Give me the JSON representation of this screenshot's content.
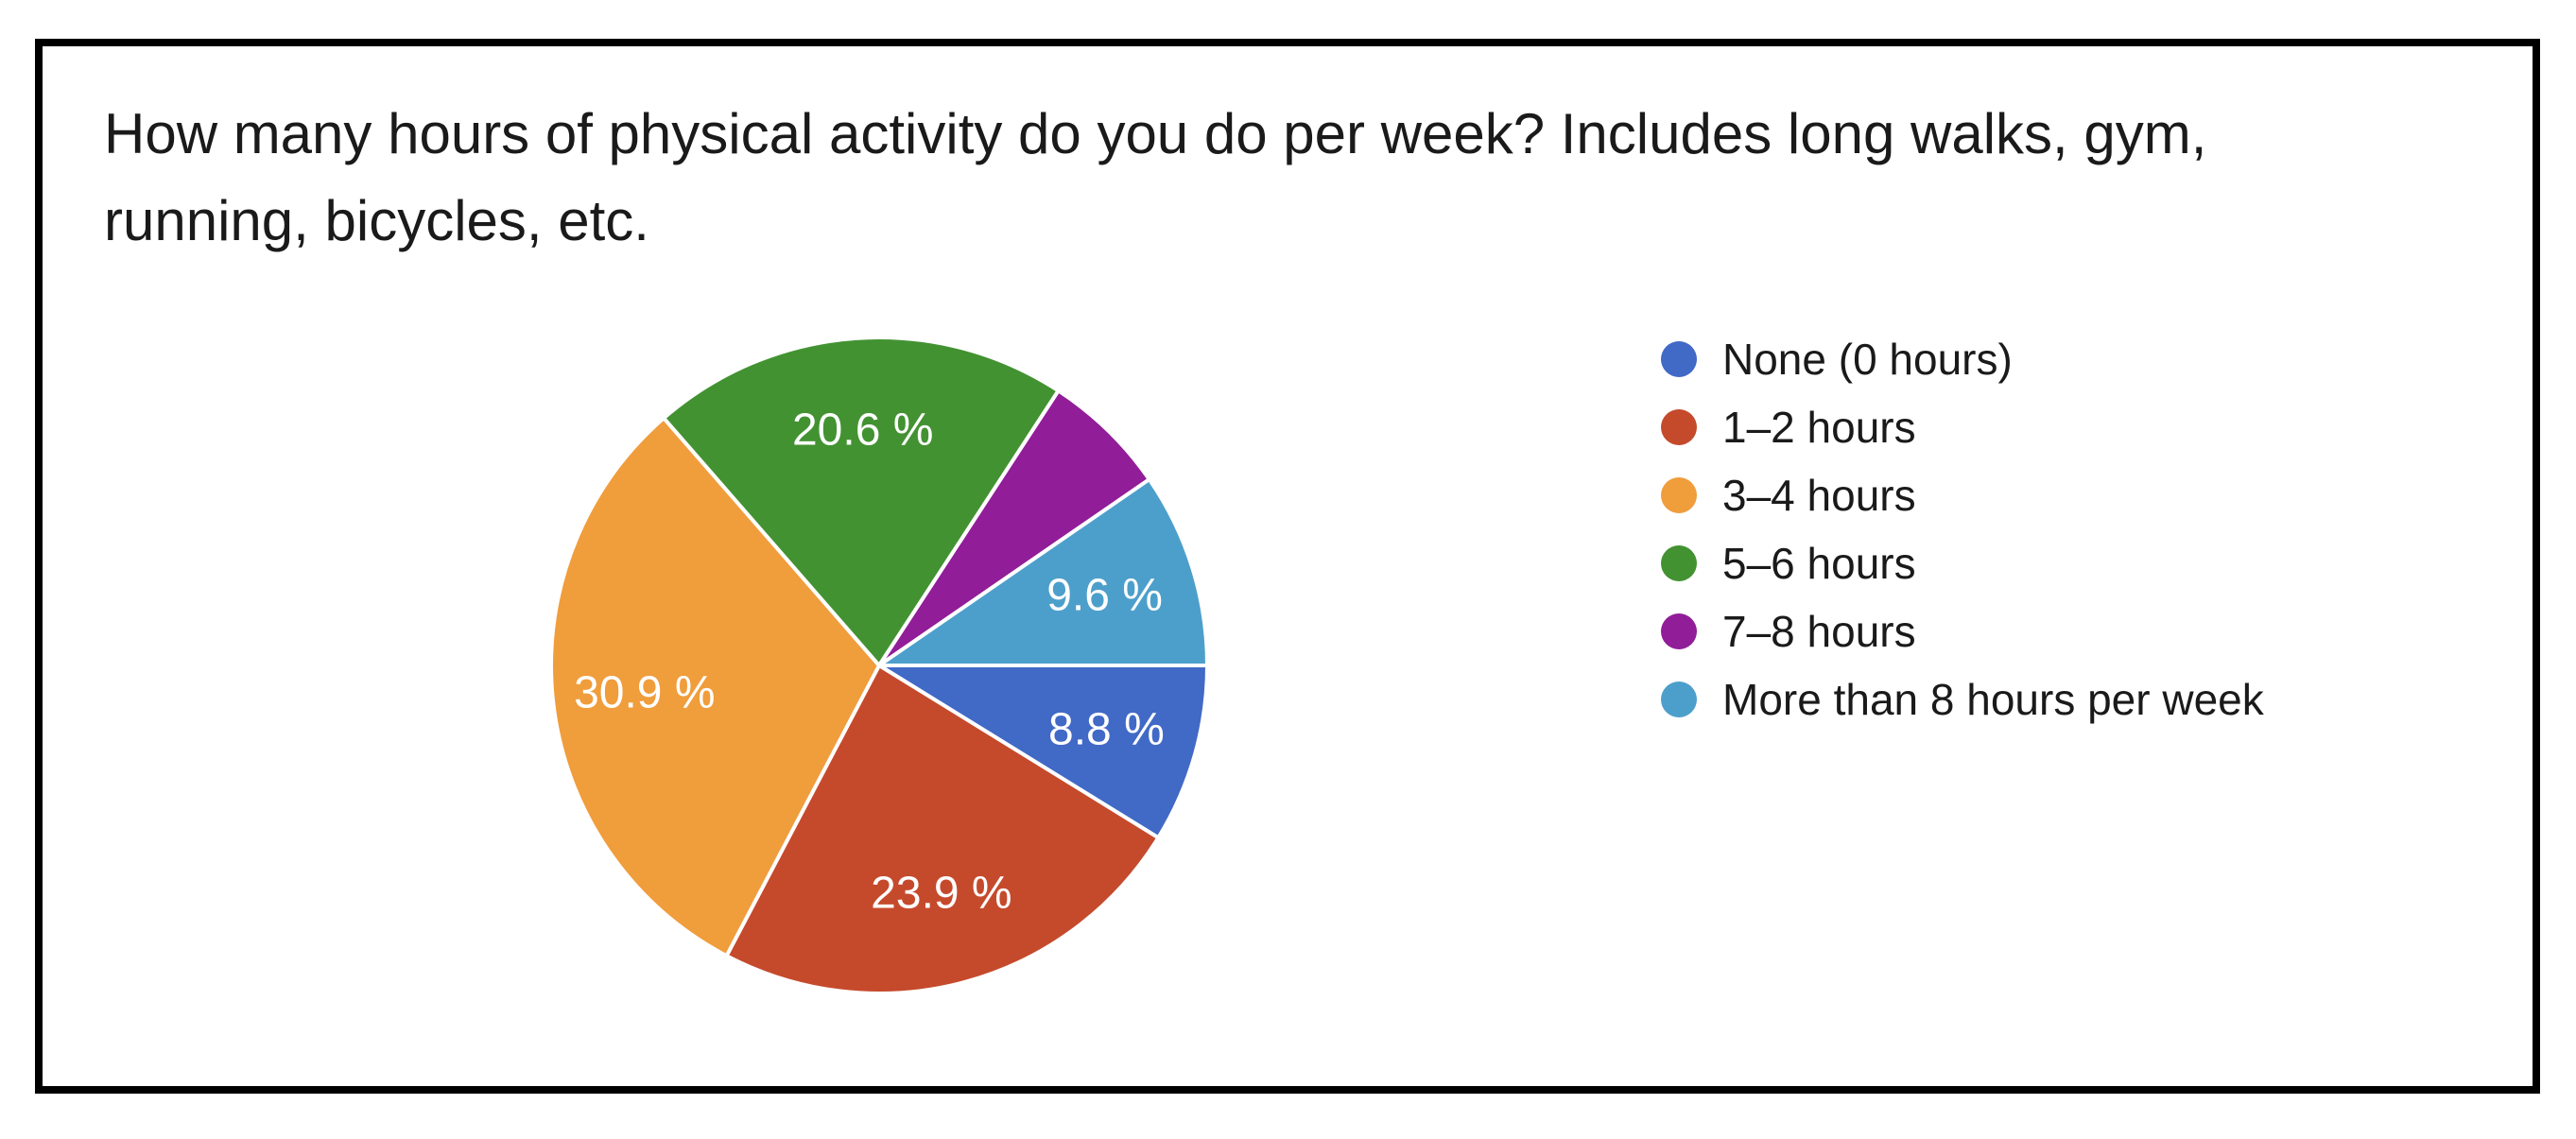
{
  "figure": {
    "title": "How many hours of physical activity do you do per week? Includes long walks, gym, running, bicycles, etc.",
    "title_lines": [
      "How many hours of physical activity do you do per week? Includes long walks, gym,",
      "running, bicycles, etc."
    ],
    "background_color": "#ffffff",
    "card_border_color": "#000000"
  },
  "chart_data": {
    "type": "pie",
    "title": "How many hours of physical activity do you do per week? Includes long walks, gym, running, bicycles, etc.",
    "categories": [
      "None (0 hours)",
      "1–2 hours",
      "3–4 hours",
      "5–6 hours",
      "7–8 hours",
      "More than 8 hours per week"
    ],
    "values": [
      8.8,
      23.9,
      30.9,
      20.6,
      6.2,
      9.6
    ],
    "slice_labels": [
      "8.8 %",
      "23.9 %",
      "30.9 %",
      "20.6 %",
      "",
      "9.6 %"
    ],
    "colors": [
      "#4169C6",
      "#C54A2C",
      "#F09D3C",
      "#439232",
      "#911D98",
      "#4D9FCB"
    ],
    "slice_label_color": "#FFFFFF",
    "start_angle_deg": 0,
    "direction": "clockwise",
    "legend_position": "right",
    "unit": "%"
  }
}
